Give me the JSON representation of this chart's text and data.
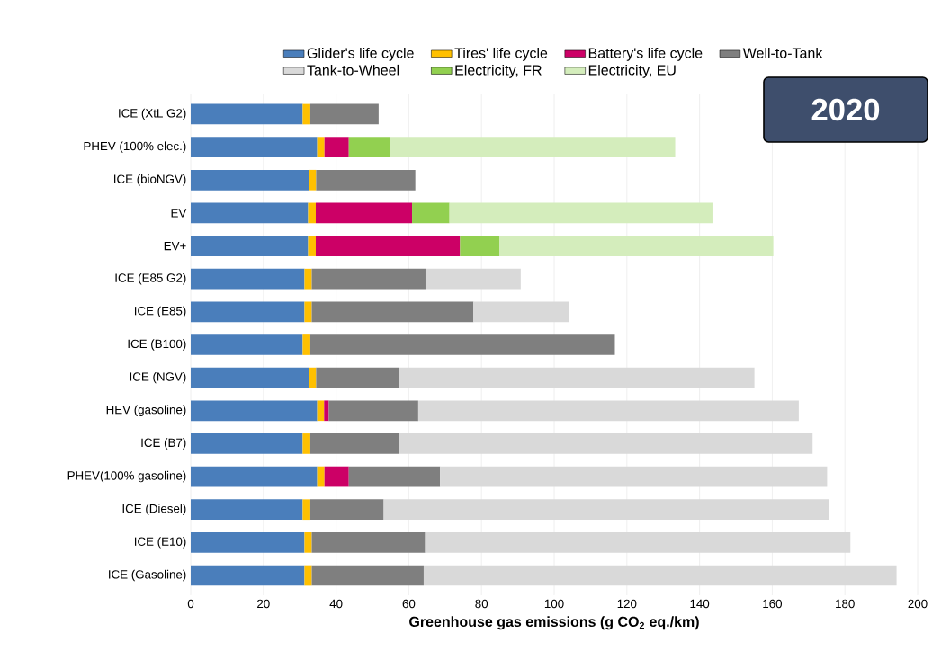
{
  "chart_data": {
    "type": "bar",
    "orientation": "horizontal",
    "stacked": true,
    "title": "2020",
    "xlabel": "Greenhouse gas emissions (g CO$_{2}$ eq./km)",
    "categories": [
      "ICE (XtL G2)",
      "PHEV (100% elec.)",
      "ICE (bioNGV)",
      "EV",
      "EV+",
      "ICE (E85 G2)",
      "ICE (E85)",
      "ICE (B100)",
      "ICE (NGV)",
      "HEV (gasoline)",
      "ICE (B7)",
      "PHEV(100% gasoline)",
      "ICE (Diesel)",
      "ICE (E10)",
      "ICE (Gasoline)"
    ],
    "series": [
      {
        "name": "Glider's life cycle",
        "color": "#4a7ebb",
        "values": [
          30.8,
          34.8,
          32.5,
          32.3,
          32.3,
          31.3,
          31.3,
          30.8,
          32.5,
          34.8,
          30.8,
          34.8,
          30.8,
          31.3,
          31.3
        ]
      },
      {
        "name": "Tires' life cycle",
        "color": "#ffc000",
        "values": [
          2.1,
          2.0,
          2.0,
          2.1,
          2.1,
          2.0,
          2.0,
          2.1,
          2.0,
          1.9,
          2.1,
          2.0,
          2.1,
          2.0,
          2.0
        ]
      },
      {
        "name": "Battery's life cycle",
        "color": "#cc0066",
        "values": [
          null,
          6.7,
          null,
          26.5,
          39.7,
          null,
          null,
          null,
          null,
          1.3,
          null,
          6.7,
          null,
          null,
          null
        ]
      },
      {
        "name": "Well-to-Tank",
        "color": "#7f7f7f",
        "values": [
          18.8,
          null,
          27.3,
          null,
          null,
          31.3,
          44.5,
          83.8,
          22.7,
          24.6,
          24.5,
          25.1,
          20.2,
          31.2,
          30.8
        ]
      },
      {
        "name": "Tank-to-Wheel",
        "color": "#d9d9d9",
        "values": [
          null,
          null,
          null,
          null,
          null,
          26.2,
          26.4,
          null,
          97.9,
          104.7,
          113.7,
          106.5,
          122.6,
          117.0,
          130.1
        ]
      },
      {
        "name": "Electricity, FR",
        "color": "#92d050",
        "values": [
          null,
          11.3,
          null,
          10.3,
          10.9,
          null,
          null,
          null,
          null,
          null,
          null,
          null,
          null,
          null,
          null
        ]
      },
      {
        "name": "Electricity, EU",
        "color": "#d4edbc",
        "values": [
          null,
          78.5,
          null,
          72.6,
          75.3,
          null,
          null,
          null,
          null,
          null,
          null,
          null,
          null,
          null,
          null
        ]
      }
    ],
    "xlim": [
      0,
      200
    ],
    "xticks": [
      0,
      20,
      40,
      60,
      80,
      100,
      120,
      140,
      160,
      180,
      200
    ],
    "grid": "x",
    "legend": "top"
  }
}
